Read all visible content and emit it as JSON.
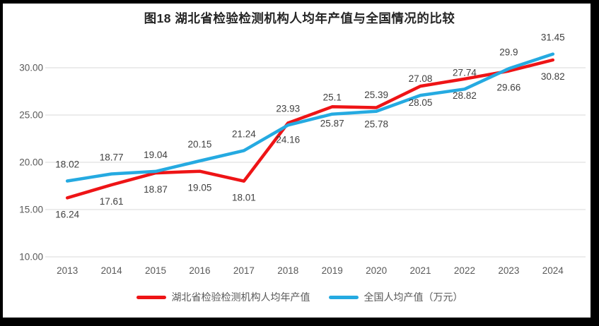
{
  "chart_data": {
    "type": "line",
    "title": "图18  湖北省检验检测机构人均年产值与全国情况的比较",
    "categories": [
      "2013",
      "2014",
      "2015",
      "2016",
      "2017",
      "2018",
      "2019",
      "2020",
      "2021",
      "2022",
      "2023",
      "2024"
    ],
    "series": [
      {
        "name": "湖北省检验检测机构人均年产值",
        "color": "#ee1416",
        "label_position": "below",
        "values": [
          16.24,
          17.61,
          18.87,
          19.05,
          18.01,
          24.16,
          25.87,
          25.78,
          28.05,
          28.82,
          29.66,
          30.82
        ]
      },
      {
        "name": "全国人均产值（万元）",
        "color": "#25aae1",
        "label_position": "above",
        "values": [
          18.02,
          18.77,
          19.04,
          20.15,
          21.24,
          23.93,
          25.1,
          25.39,
          27.08,
          27.74,
          29.9,
          31.45
        ]
      }
    ],
    "y_axis": {
      "min": 10,
      "max": 32.5,
      "tick_values": [
        10,
        15,
        20,
        25,
        30
      ],
      "tick_labels": [
        "10.00",
        "15.00",
        "20.00",
        "25.00",
        "30.00"
      ]
    },
    "grid": "horizontal",
    "data_labels": true,
    "legend_position": "bottom"
  },
  "colors": {
    "grid": "#d9d9d9",
    "axis_text": "#595959",
    "data_label_text": "#404040",
    "title_text": "#262626",
    "frame_border": "#000000",
    "background": "#ffffff"
  }
}
